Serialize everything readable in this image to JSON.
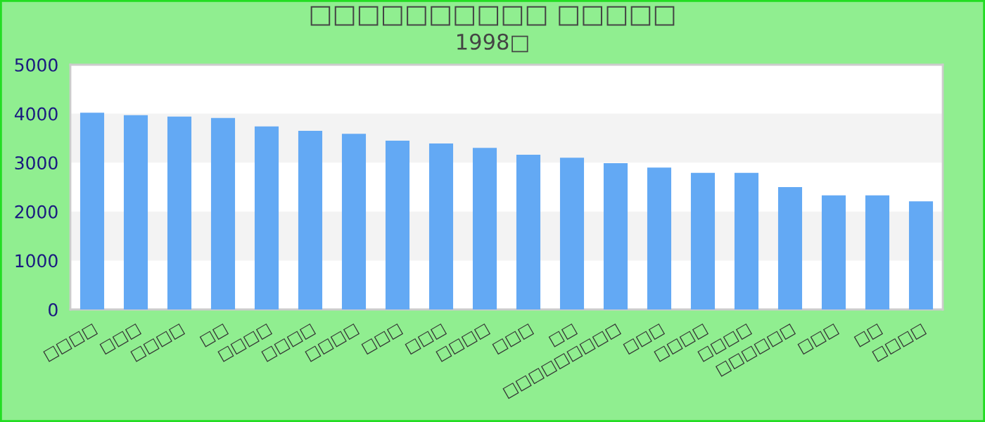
{
  "chart_data": {
    "type": "bar",
    "title": "□□□□□□□□□□ □□□□□",
    "subtitle": "1998□",
    "categories": [
      "□□□□",
      "□□□",
      "□□□□",
      "□□",
      "□□□□",
      "□□□□",
      "□□□□",
      "□□□",
      "□□□",
      "□□□□",
      "□□□",
      "□□",
      "□□□□□□□□□",
      "□□□",
      "□□□□",
      "□□□□",
      "□□□□□□",
      "□□□",
      "□□",
      "□□□□"
    ],
    "values": [
      4020,
      3970,
      3940,
      3910,
      3740,
      3650,
      3590,
      3450,
      3390,
      3300,
      3160,
      3100,
      2990,
      2900,
      2790,
      2790,
      2500,
      2330,
      2330,
      2210
    ],
    "color": "#63a9f4",
    "ylim": [
      0,
      5000
    ],
    "yticks": [
      0,
      1000,
      2000,
      3000,
      4000,
      5000
    ],
    "bands": [
      {
        "axis": "y",
        "from": 1000,
        "to": 2000,
        "color": "#f3f3f3"
      },
      {
        "axis": "y",
        "from": 3000,
        "to": 4000,
        "color": "#f3f3f3"
      }
    ],
    "grid": false
  }
}
